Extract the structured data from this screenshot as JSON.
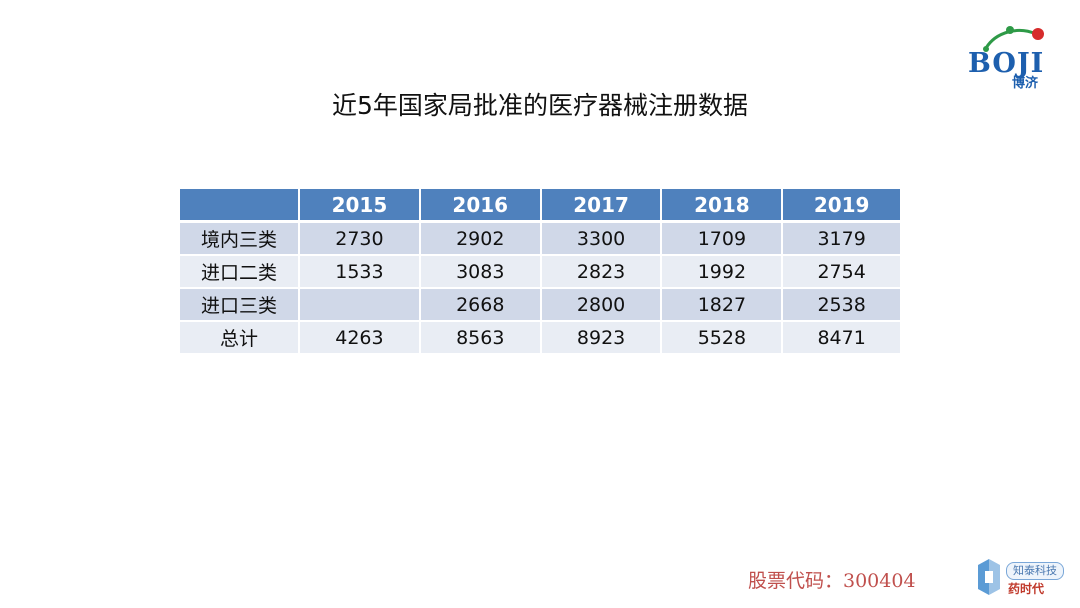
{
  "logo": {
    "text": "BOJI",
    "sub": "博济"
  },
  "title": "近5年国家局批准的医疗器械注册数据",
  "table": {
    "headers": [
      "",
      "2015",
      "2016",
      "2017",
      "2018",
      "2019"
    ],
    "rows": [
      {
        "label": "境内三类",
        "values": [
          "2730",
          "2902",
          "3300",
          "1709",
          "3179"
        ]
      },
      {
        "label": "进口二类",
        "values": [
          "1533",
          "3083",
          "2823",
          "1992",
          "2754"
        ]
      },
      {
        "label": "进口三类",
        "values": [
          "",
          "2668",
          "2800",
          "1827",
          "2538"
        ]
      },
      {
        "label": "总计",
        "values": [
          "4263",
          "8563",
          "8923",
          "5528",
          "8471"
        ]
      }
    ]
  },
  "footer": {
    "stock_code": "股票代码：300404",
    "watermark_top": "知泰科技",
    "watermark_bottom": "药时代"
  },
  "colors": {
    "header_bg": "#4f81bd",
    "row_dark": "#d0d8e8",
    "row_light": "#e9edf4",
    "stock_text": "#c0504d",
    "logo_blue": "#1d5fae"
  }
}
